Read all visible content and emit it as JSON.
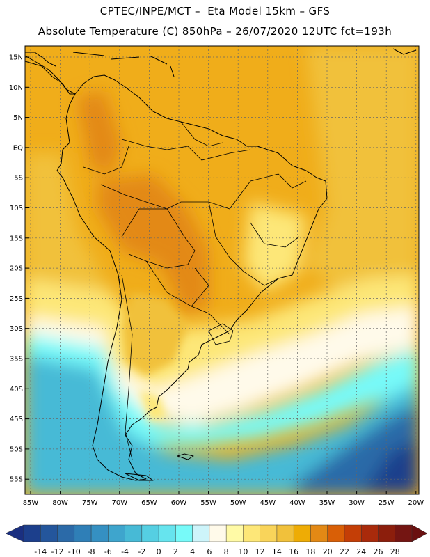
{
  "header": {
    "title_line1": "CPTEC/INPE/MCT –  Eta Model 15km – GFS",
    "title_line2": "Absolute Temperature (C) 850hPa – 26/07/2020 12UTC fct=193h"
  },
  "axes": {
    "lat_labels": [
      "15N",
      "10N",
      "5N",
      "EQ",
      "5S",
      "10S",
      "15S",
      "20S",
      "25S",
      "30S",
      "35S",
      "40S",
      "45S",
      "50S",
      "55S"
    ],
    "lon_labels": [
      "85W",
      "80W",
      "75W",
      "70W",
      "65W",
      "60W",
      "55W",
      "50W",
      "45W",
      "40W",
      "35W",
      "30W",
      "25W",
      "20W"
    ]
  },
  "colorbar": {
    "labels": [
      "-14",
      "-12",
      "-10",
      "-8",
      "-6",
      "-4",
      "-2",
      "0",
      "2",
      "4",
      "6",
      "8",
      "10",
      "12",
      "14",
      "16",
      "18",
      "20",
      "22",
      "24",
      "26",
      "28"
    ],
    "under_color": "#1a2f80",
    "over_color": "#6a1010",
    "colors": [
      "#1c3f8c",
      "#24569c",
      "#2b6aa8",
      "#2f7fb7",
      "#3590c2",
      "#3ea5cd",
      "#47bad6",
      "#55cfe2",
      "#66e4ee",
      "#77faf9",
      "#cdf4fa",
      "#fffaea",
      "#fffaa6",
      "#fde778",
      "#f9d45a",
      "#f1c13b",
      "#eeac05",
      "#e38915",
      "#d95f06",
      "#c43e06",
      "#a92a0b",
      "#8c1e0c",
      "#741512"
    ]
  },
  "map": {
    "background_color": "#f0ad1a",
    "ocean_cold_color": "#4fc8e0",
    "ocean_deep_color": "#2a69a8"
  }
}
